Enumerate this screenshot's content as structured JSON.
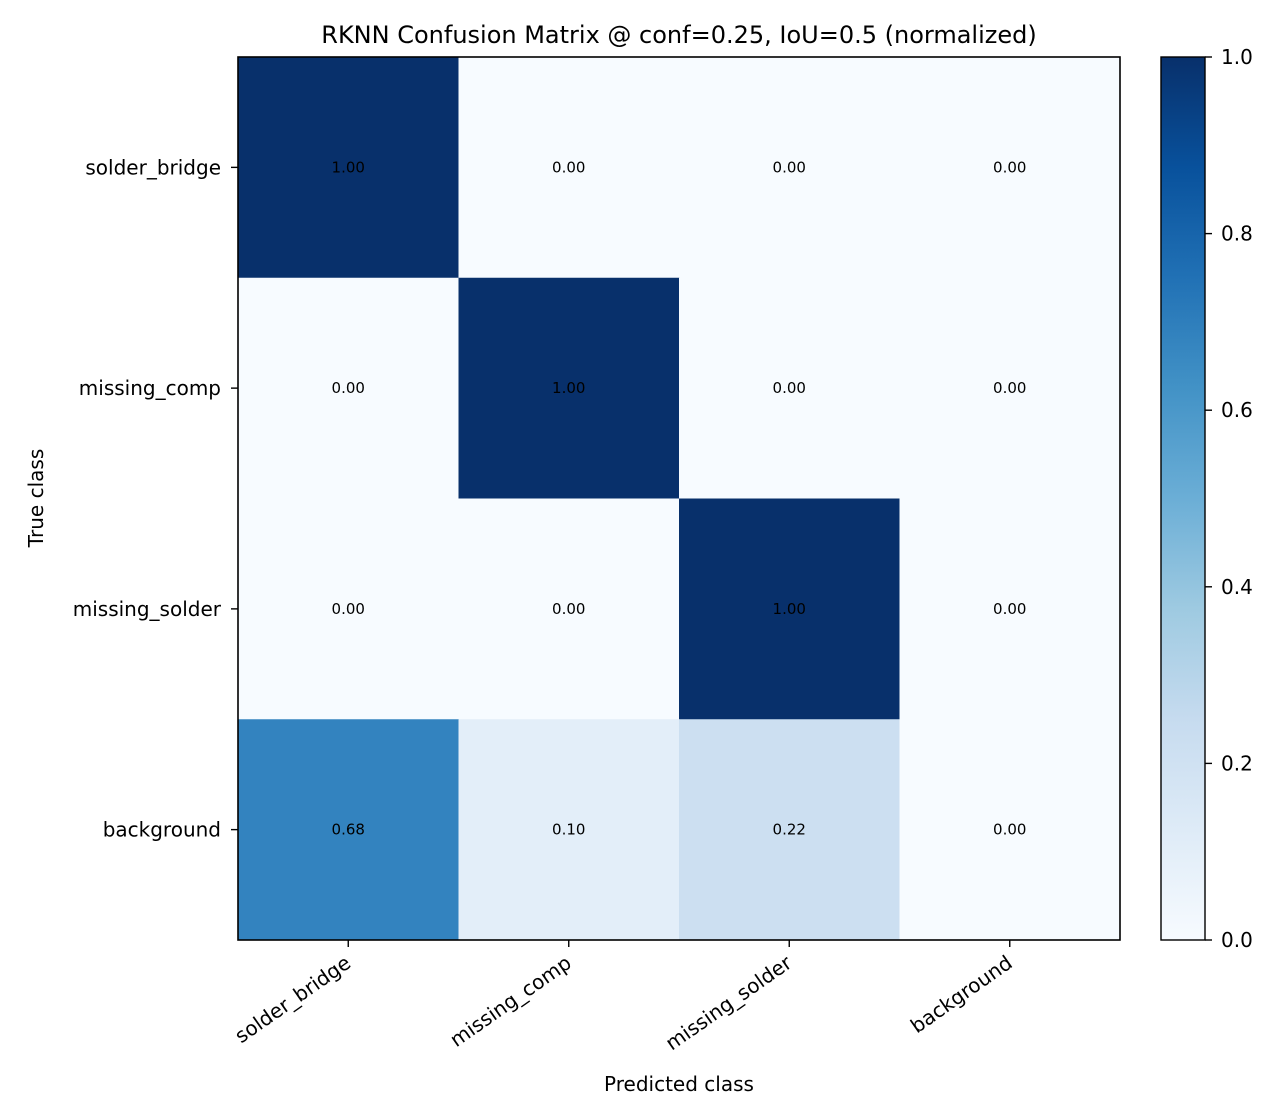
{
  "chart_data": {
    "type": "heatmap",
    "title": "RKNN Confusion Matrix @ conf=0.25, IoU=0.5 (normalized)",
    "xlabel": "Predicted class",
    "ylabel": "True class",
    "x_categories": [
      "solder_bridge",
      "missing_comp",
      "missing_solder",
      "background"
    ],
    "y_categories": [
      "solder_bridge",
      "missing_comp",
      "missing_solder",
      "background"
    ],
    "values": [
      [
        1.0,
        0.0,
        0.0,
        0.0
      ],
      [
        0.0,
        1.0,
        0.0,
        0.0
      ],
      [
        0.0,
        0.0,
        1.0,
        0.0
      ],
      [
        0.68,
        0.1,
        0.22,
        0.0
      ]
    ],
    "value_labels": [
      [
        "1.00",
        "0.00",
        "0.00",
        "0.00"
      ],
      [
        "0.00",
        "1.00",
        "0.00",
        "0.00"
      ],
      [
        "0.00",
        "0.00",
        "1.00",
        "0.00"
      ],
      [
        "0.68",
        "0.10",
        "0.22",
        "0.00"
      ]
    ],
    "colormap": "Blues",
    "color_range": [
      0.0,
      1.0
    ],
    "colorbar_ticks": [
      0.0,
      0.2,
      0.4,
      0.6,
      0.8,
      1.0
    ],
    "colorbar_tick_labels": [
      "0.0",
      "0.2",
      "0.4",
      "0.6",
      "0.8",
      "1.0"
    ],
    "grid": false,
    "colorbar_placement": "right"
  }
}
